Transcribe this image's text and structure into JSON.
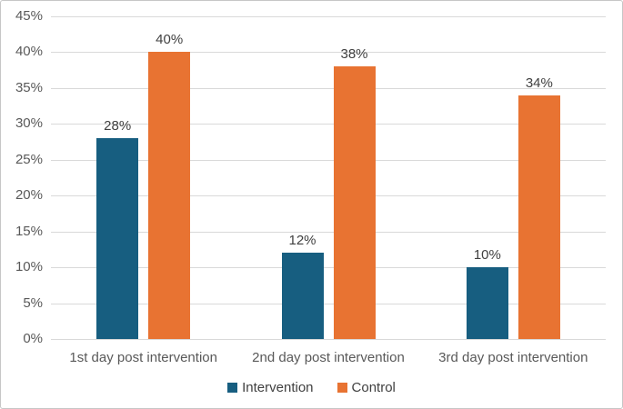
{
  "chart_data": {
    "type": "bar",
    "title": "",
    "xlabel": "",
    "ylabel": "",
    "categories": [
      "1st day post intervention",
      "2nd day post intervention",
      "3rd day post intervention"
    ],
    "series": [
      {
        "name": "Intervention",
        "color": "#175E80",
        "values": [
          28,
          12,
          10
        ]
      },
      {
        "name": "Control",
        "color": "#E87332",
        "values": [
          40,
          38,
          34
        ]
      }
    ],
    "data_labels": [
      "28%",
      "40%",
      "12%",
      "38%",
      "10%",
      "34%"
    ],
    "value_suffix": "%",
    "ylim": [
      0,
      45
    ],
    "ytick_step": 5,
    "ytick_labels": [
      "0%",
      "5%",
      "10%",
      "15%",
      "20%",
      "25%",
      "30%",
      "35%",
      "40%",
      "45%"
    ],
    "grid": true,
    "legend_position": "bottom"
  },
  "colors": {
    "background": "#FFFFFF",
    "frame_border": "#C6C6C6",
    "grid_line": "#D9D9D9",
    "tick_text": "#595959",
    "category_text": "#595959",
    "data_label_text": "#404040",
    "legend_text": "#404040"
  }
}
